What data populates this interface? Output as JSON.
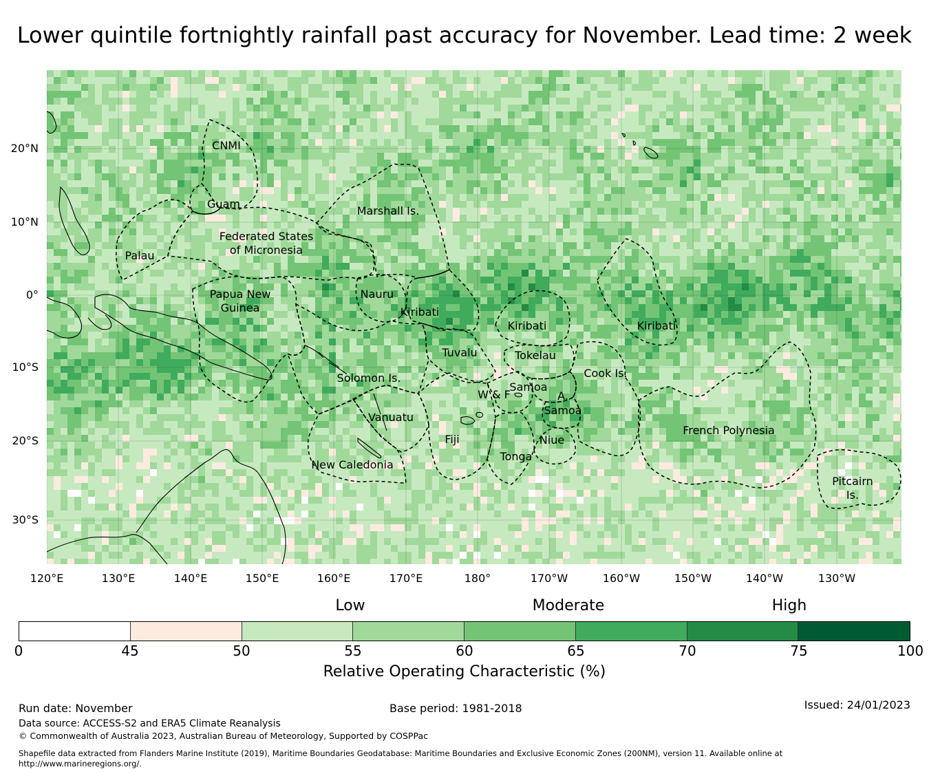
{
  "title": "Lower quintile fortnightly rainfall past accuracy for November. Lead time: 2 week",
  "map": {
    "lat_ticks": [
      "20°N",
      "10°N",
      "0°",
      "10°S",
      "20°S",
      "30°S"
    ],
    "lon_ticks": [
      "120°E",
      "130°E",
      "140°E",
      "150°E",
      "160°E",
      "170°E",
      "180°",
      "170°W",
      "160°W",
      "150°W",
      "140°W",
      "130°W"
    ],
    "regions": [
      {
        "name": "CNMI"
      },
      {
        "name": "Guam"
      },
      {
        "name": "Marshall Is."
      },
      {
        "name": "Federated States\nof Micronesia"
      },
      {
        "name": "Palau"
      },
      {
        "name": "Papua New\nGuinea"
      },
      {
        "name": "Nauru"
      },
      {
        "name": "Kiribati"
      },
      {
        "name": "Kiribati"
      },
      {
        "name": "Kiribati"
      },
      {
        "name": "Tuvalu"
      },
      {
        "name": "Tokelau"
      },
      {
        "name": "Cook Is."
      },
      {
        "name": "Solomon Is."
      },
      {
        "name": "Samoa"
      },
      {
        "name": "W & F"
      },
      {
        "name": "A."
      },
      {
        "name": "Samoa"
      },
      {
        "name": "Vanuatu"
      },
      {
        "name": "Fiji"
      },
      {
        "name": "Niue"
      },
      {
        "name": "French Polynesia"
      },
      {
        "name": "Tonga"
      },
      {
        "name": "New Caledonia"
      },
      {
        "name": "Pitcairn\nIs."
      }
    ]
  },
  "colorbar": {
    "bins": [
      {
        "from": 0,
        "to": 45,
        "color": "#ffffff"
      },
      {
        "from": 45,
        "to": 50,
        "color": "#fdebe0"
      },
      {
        "from": 50,
        "to": 55,
        "color": "#c7e9c0"
      },
      {
        "from": 55,
        "to": 60,
        "color": "#a1d99b"
      },
      {
        "from": 60,
        "to": 65,
        "color": "#74c476"
      },
      {
        "from": 65,
        "to": 70,
        "color": "#41ab5d"
      },
      {
        "from": 70,
        "to": 75,
        "color": "#238b45"
      },
      {
        "from": 75,
        "to": 100,
        "color": "#005a32"
      }
    ],
    "ticks": [
      "0",
      "45",
      "50",
      "55",
      "60",
      "65",
      "70",
      "75",
      "100"
    ],
    "categories": [
      "Low",
      "Moderate",
      "High"
    ],
    "label": "Relative Operating Characteristic (%)"
  },
  "footer": {
    "run_date": "Run date: November",
    "base_period": "Base period: 1981-2018",
    "issued": "Issued: 24/01/2023",
    "data_source": "Data source: ACCESS-S2 and ERA5 Climate Reanalysis",
    "copyright": "© Commonwealth of Australia 2023, Australian Bureau of Meteorology, Supported by COSPPac",
    "shapefile": "Shapefile data extracted from Flanders Marine Institute (2019), Maritime Boundaries Geodatabase: Maritime Boundaries and Exclusive Economic Zones (200NM), version 11. Available online at",
    "shapefile_url": "http://www.marineregions.org/."
  }
}
